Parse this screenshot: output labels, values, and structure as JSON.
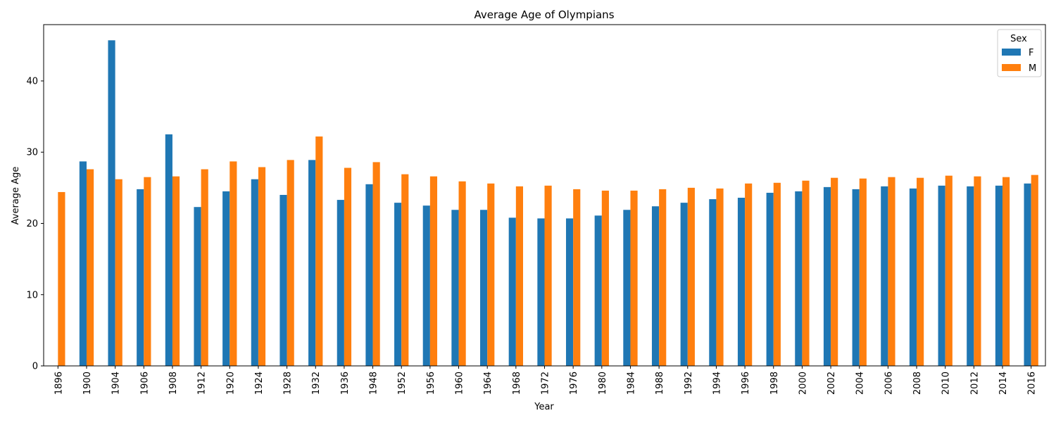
{
  "chart_data": {
    "type": "bar",
    "title": "Average Age of Olympians",
    "xlabel": "Year",
    "ylabel": "Average Age",
    "ylim": [
      0,
      47.9
    ],
    "yticks": [
      0,
      10,
      20,
      30,
      40
    ],
    "grid": false,
    "legend": {
      "title": "Sex",
      "placement": "top-right"
    },
    "categories": [
      "1896",
      "1900",
      "1904",
      "1906",
      "1908",
      "1912",
      "1920",
      "1924",
      "1928",
      "1932",
      "1936",
      "1948",
      "1952",
      "1956",
      "1960",
      "1964",
      "1968",
      "1972",
      "1976",
      "1980",
      "1984",
      "1988",
      "1992",
      "1994",
      "1996",
      "1998",
      "2000",
      "2002",
      "2004",
      "2006",
      "2008",
      "2010",
      "2012",
      "2014",
      "2016"
    ],
    "series": [
      {
        "name": "F",
        "color": "#1f77b4",
        "values": [
          null,
          28.7,
          45.7,
          24.8,
          32.5,
          22.3,
          24.5,
          26.2,
          24.0,
          28.9,
          23.3,
          25.5,
          22.9,
          22.5,
          21.9,
          21.9,
          20.8,
          20.7,
          20.7,
          21.1,
          21.9,
          22.4,
          22.9,
          23.4,
          23.6,
          24.3,
          24.5,
          25.1,
          24.8,
          25.2,
          24.9,
          25.3,
          25.2,
          25.3,
          25.6
        ]
      },
      {
        "name": "M",
        "color": "#ff7f0e",
        "values": [
          24.4,
          27.6,
          26.2,
          26.5,
          26.6,
          27.6,
          28.7,
          27.9,
          28.9,
          32.2,
          27.8,
          28.6,
          26.9,
          26.6,
          25.9,
          25.6,
          25.2,
          25.3,
          24.8,
          24.6,
          24.6,
          24.8,
          25.0,
          24.9,
          25.6,
          25.7,
          26.0,
          26.4,
          26.3,
          26.5,
          26.4,
          26.7,
          26.6,
          26.5,
          26.8
        ]
      }
    ]
  }
}
